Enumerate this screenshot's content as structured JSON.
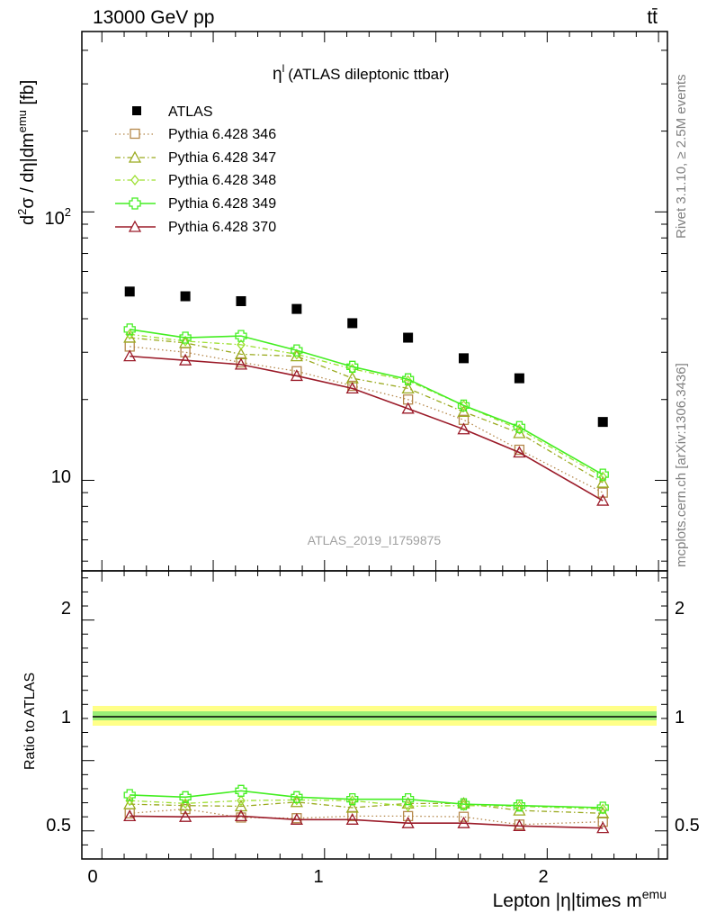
{
  "header": {
    "energy": "13000 GeV pp",
    "process": "tt̄",
    "side_rivet": "Rivet 3.1.10, ≥ 2.5M events",
    "side_site": "mcplots.cern.ch [arXiv:1306.3436]"
  },
  "chart_data": [
    {
      "type": "scatter",
      "panel": "main",
      "title_symbol": "η",
      "title_sup": "l",
      "title_rest": "(ATLAS dileptonic ttbar)",
      "ylabel": "d²σ / dη|dmemu [fb]",
      "ylabel_parts": {
        "a": "d",
        "sup1": "2",
        "b": "σ / dη|dm",
        "sup2": "emu",
        "c": " [fb]"
      },
      "analysis_id": "ATLAS_2019_I1759875",
      "yscale": "log",
      "ylim": [
        4.6,
        470
      ],
      "xlim": [
        -0.09,
        2.54
      ],
      "y_tick_labels": {
        "major_10": "10",
        "major_100_base": "10",
        "major_100_exp": "2"
      },
      "x": [
        0.125,
        0.375,
        0.625,
        0.875,
        1.125,
        1.375,
        1.625,
        1.875,
        2.25
      ],
      "series": [
        {
          "name": "ATLAS",
          "color": "#000000",
          "marker": "square-filled",
          "line": "none",
          "values": [
            50.5,
            48.5,
            46.5,
            43.5,
            38.5,
            34.0,
            28.5,
            24.0,
            16.5
          ]
        },
        {
          "name": "Pythia 6.428 346",
          "color": "#b5884b",
          "marker": "square-open",
          "line": "dotted",
          "values": [
            31.5,
            30.0,
            27.5,
            25.5,
            22.5,
            20.0,
            16.8,
            13.0,
            9.0
          ]
        },
        {
          "name": "Pythia 6.428 347",
          "color": "#9aaa1f",
          "marker": "triangle-open",
          "line": "dashdot",
          "values": [
            34.0,
            32.5,
            29.5,
            29.0,
            24.0,
            22.0,
            18.0,
            15.0,
            9.8
          ]
        },
        {
          "name": "Pythia 6.428 348",
          "color": "#9de030",
          "marker": "diamond-open",
          "line": "dashdot",
          "values": [
            35.0,
            33.0,
            32.0,
            29.5,
            26.0,
            23.5,
            19.0,
            15.5,
            10.3
          ]
        },
        {
          "name": "Pythia 6.428 349",
          "color": "#44ee22",
          "marker": "cross-open",
          "line": "solid",
          "values": [
            36.5,
            34.0,
            34.5,
            30.5,
            26.5,
            23.8,
            19.0,
            15.8,
            10.5
          ]
        },
        {
          "name": "Pythia 6.428 370",
          "color": "#9b1b29",
          "marker": "triangle-open",
          "line": "solid",
          "values": [
            29.0,
            28.0,
            27.0,
            24.5,
            22.0,
            18.5,
            15.5,
            12.7,
            8.4
          ]
        }
      ]
    },
    {
      "type": "scatter",
      "panel": "ratio",
      "ylabel": "Ratio to ATLAS",
      "ylim": [
        0.3,
        2.35
      ],
      "xlim": [
        -0.09,
        2.54
      ],
      "xlabel": "Lepton |η|times m",
      "xlabel_sup": "emu",
      "x_tick_labels": [
        "0",
        "1",
        "2"
      ],
      "y_tick_labels": [
        "0.5",
        "1",
        "2"
      ],
      "band_yellow": [
        0.92,
        1.08
      ],
      "band_green": [
        0.96,
        1.04
      ],
      "reference": 1.0,
      "x": [
        0.125,
        0.375,
        0.625,
        0.875,
        1.125,
        1.375,
        1.625,
        1.875,
        2.25
      ],
      "series": [
        {
          "name": "Pythia 6.428 346",
          "values": [
            0.625,
            0.655,
            0.595,
            0.59,
            0.605,
            0.605,
            0.6,
            0.545,
            0.565
          ]
        },
        {
          "name": "Pythia 6.428 347",
          "values": [
            0.69,
            0.68,
            0.675,
            0.705,
            0.665,
            0.695,
            0.695,
            0.645,
            0.625
          ]
        },
        {
          "name": "Pythia 6.428 348",
          "values": [
            0.715,
            0.695,
            0.715,
            0.72,
            0.715,
            0.675,
            0.68,
            0.675,
            0.655
          ]
        },
        {
          "name": "Pythia 6.428 349",
          "values": [
            0.755,
            0.74,
            0.785,
            0.74,
            0.725,
            0.725,
            0.69,
            0.68,
            0.665
          ]
        },
        {
          "name": "Pythia 6.428 370",
          "values": [
            0.605,
            0.6,
            0.605,
            0.58,
            0.58,
            0.555,
            0.555,
            0.535,
            0.52
          ]
        }
      ]
    }
  ]
}
